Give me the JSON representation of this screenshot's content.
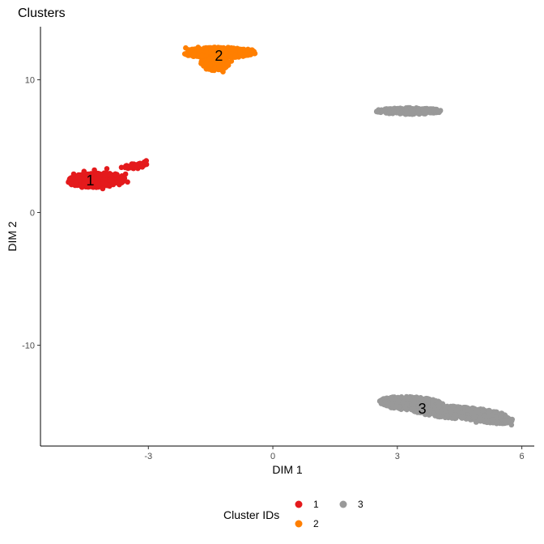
{
  "chart_data": {
    "type": "scatter",
    "title": "Clusters",
    "xlabel": "DIM 1",
    "ylabel": "DIM 2",
    "xlim": [
      -5.6,
      6.3
    ],
    "ylim": [
      -17.6,
      14.0
    ],
    "x_ticks": [
      -3,
      0,
      3,
      6
    ],
    "x_tick_labels": [
      "-3",
      "0",
      "3",
      "6"
    ],
    "y_ticks": [
      -10,
      0,
      10
    ],
    "y_tick_labels": [
      "-10",
      "0",
      "10"
    ],
    "grid": false,
    "legend": {
      "title": "Cluster IDs",
      "position": "bottom",
      "entries": [
        {
          "label": "1",
          "color": "#E41A1C"
        },
        {
          "label": "2",
          "color": "#FF7F00"
        },
        {
          "label": "3",
          "color": "#999999"
        }
      ]
    },
    "series": [
      {
        "name": "1",
        "color": "#E41A1C",
        "label_position": [
          -4.4,
          2.4
        ],
        "regions": [
          {
            "cx": -4.25,
            "cy": 2.45,
            "rx": 0.7,
            "ry": 0.55,
            "tilt": 0.25
          },
          {
            "cx": -3.3,
            "cy": 3.5,
            "rx": 0.3,
            "ry": 0.2,
            "tilt": 0.3
          }
        ],
        "points": [
          [
            -4.9,
            2.5
          ],
          [
            -4.85,
            2.1
          ],
          [
            -4.8,
            2.9
          ],
          [
            -4.75,
            2.3
          ],
          [
            -4.7,
            2.7
          ],
          [
            -4.6,
            1.9
          ],
          [
            -4.55,
            3.1
          ],
          [
            -4.5,
            2.5
          ],
          [
            -4.4,
            2.0
          ],
          [
            -4.3,
            3.2
          ],
          [
            -4.2,
            2.6
          ],
          [
            -4.1,
            1.8
          ],
          [
            -4.0,
            3.3
          ],
          [
            -3.9,
            2.4
          ],
          [
            -3.8,
            2.9
          ],
          [
            -3.7,
            2.1
          ],
          [
            -3.65,
            3.4
          ],
          [
            -3.6,
            2.6
          ],
          [
            -3.5,
            2.3
          ],
          [
            -3.4,
            3.5
          ],
          [
            -3.3,
            3.6
          ],
          [
            -3.2,
            3.7
          ],
          [
            -3.1,
            3.8
          ],
          [
            -3.05,
            3.9
          ],
          [
            -4.65,
            2.6
          ],
          [
            -4.45,
            2.9
          ],
          [
            -4.25,
            2.2
          ],
          [
            -4.05,
            2.8
          ],
          [
            -3.85,
            2.2
          ],
          [
            -3.55,
            2.9
          ]
        ]
      },
      {
        "name": "2",
        "color": "#FF7F00",
        "label_position": [
          -1.3,
          11.8
        ],
        "regions": [
          {
            "cx": -1.3,
            "cy": 12.05,
            "rx": 0.9,
            "ry": 0.4,
            "tilt": 0.0
          },
          {
            "cx": -1.4,
            "cy": 11.2,
            "rx": 0.35,
            "ry": 0.5,
            "tilt": 0.0
          }
        ],
        "points": [
          [
            -2.1,
            12.4
          ],
          [
            -1.95,
            12.3
          ],
          [
            -1.8,
            12.45
          ],
          [
            -1.6,
            12.3
          ],
          [
            -1.4,
            12.45
          ],
          [
            -1.2,
            12.3
          ],
          [
            -1.0,
            12.4
          ],
          [
            -0.8,
            12.3
          ],
          [
            -0.6,
            12.3
          ],
          [
            -0.5,
            12.25
          ],
          [
            -1.9,
            12.0
          ],
          [
            -1.7,
            11.8
          ],
          [
            -1.5,
            11.6
          ],
          [
            -1.35,
            11.3
          ],
          [
            -1.3,
            11.0
          ],
          [
            -1.4,
            10.8
          ],
          [
            -1.2,
            10.6
          ],
          [
            -1.0,
            11.4
          ],
          [
            -0.9,
            11.8
          ],
          [
            -1.15,
            11.9
          ]
        ]
      },
      {
        "name": "3",
        "color": "#999999",
        "label_position": [
          3.6,
          -14.8
        ],
        "regions": [
          {
            "cx": 3.3,
            "cy": 7.65,
            "rx": 0.8,
            "ry": 0.25,
            "tilt": 0.0
          },
          {
            "cx": 3.35,
            "cy": -14.4,
            "rx": 0.8,
            "ry": 0.5,
            "tilt": -0.3
          },
          {
            "cx": 4.5,
            "cy": -15.1,
            "rx": 1.2,
            "ry": 0.45,
            "tilt": -0.28
          },
          {
            "cx": 5.35,
            "cy": -15.6,
            "rx": 0.45,
            "ry": 0.3,
            "tilt": -0.3
          }
        ],
        "points": [
          [
            2.5,
            7.6
          ],
          [
            2.7,
            7.7
          ],
          [
            2.9,
            7.8
          ],
          [
            3.1,
            7.5
          ],
          [
            3.3,
            7.9
          ],
          [
            3.5,
            7.6
          ],
          [
            3.7,
            7.8
          ],
          [
            3.9,
            7.7
          ],
          [
            4.0,
            7.6
          ],
          [
            3.2,
            7.4
          ],
          [
            2.85,
            -14.0
          ],
          [
            2.9,
            -14.6
          ],
          [
            3.1,
            -13.9
          ],
          [
            3.2,
            -14.8
          ],
          [
            3.4,
            -14.2
          ],
          [
            3.6,
            -14.5
          ],
          [
            3.8,
            -14.9
          ],
          [
            4.0,
            -14.6
          ],
          [
            4.2,
            -15.3
          ],
          [
            4.4,
            -14.9
          ],
          [
            4.6,
            -15.4
          ],
          [
            4.8,
            -15.1
          ],
          [
            5.0,
            -15.6
          ],
          [
            5.2,
            -15.3
          ],
          [
            5.4,
            -15.8
          ],
          [
            5.6,
            -15.7
          ],
          [
            5.75,
            -16.0
          ],
          [
            5.5,
            -15.4
          ],
          [
            4.9,
            -15.8
          ],
          [
            4.3,
            -15.0
          ]
        ]
      }
    ]
  }
}
